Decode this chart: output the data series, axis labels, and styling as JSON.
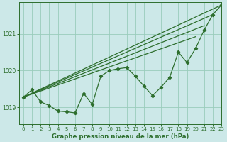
{
  "title": "Graphe pression niveau de la mer (hPa)",
  "bg_color": "#cce8e8",
  "grid_color": "#99ccbb",
  "line_color": "#2d6e2d",
  "xlim": [
    -0.5,
    23
  ],
  "ylim": [
    1018.55,
    1021.85
  ],
  "yticks": [
    1019,
    1020,
    1021
  ],
  "xticks": [
    0,
    1,
    2,
    3,
    4,
    5,
    6,
    7,
    8,
    9,
    10,
    11,
    12,
    13,
    14,
    15,
    16,
    17,
    18,
    19,
    20,
    21,
    22,
    23
  ],
  "straight_lines": [
    [
      [
        0,
        1019.28
      ],
      [
        23,
        1021.78
      ]
    ],
    [
      [
        0,
        1019.28
      ],
      [
        22,
        1021.52
      ]
    ],
    [
      [
        0,
        1019.28
      ],
      [
        21,
        1021.22
      ]
    ],
    [
      [
        0,
        1019.28
      ],
      [
        20,
        1020.92
      ]
    ]
  ],
  "marker_series": [
    1019.28,
    1019.48,
    1019.15,
    1019.05,
    1018.9,
    1018.88,
    1018.85,
    1019.38,
    1019.08,
    1019.85,
    1020.0,
    1020.05,
    1020.08,
    1019.85,
    1019.58,
    1019.32,
    1019.55,
    1019.82,
    1020.5,
    1020.22,
    1020.6,
    1021.1,
    1021.52,
    1021.78
  ]
}
